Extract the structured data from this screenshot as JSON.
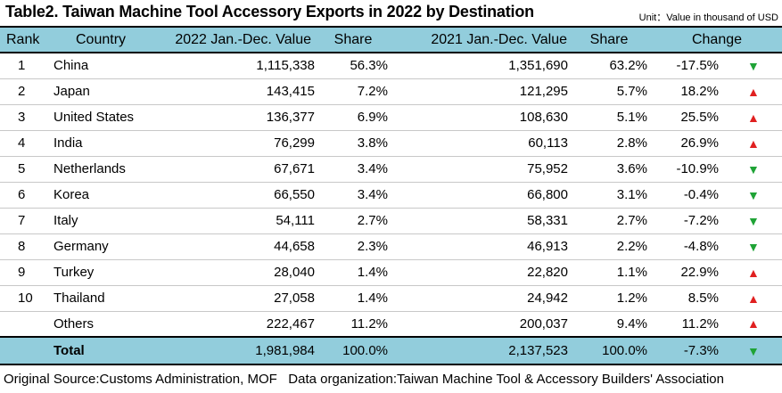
{
  "title": "Table2. Taiwan Machine Tool Accessory Exports in 2022 by Destination",
  "unit": "Unit：Value in thousand of USD",
  "headers": {
    "rank": "Rank",
    "country": "Country",
    "value_2022": "2022 Jan.-Dec. Value",
    "share_2022": "Share",
    "value_2021": "2021 Jan.-Dec. Value",
    "share_2021": "Share",
    "change": "Change"
  },
  "rows": [
    {
      "rank": "1",
      "country": "China",
      "value_2022": "1,115,338",
      "share_2022": "56.3%",
      "value_2021": "1,351,690",
      "share_2021": "63.2%",
      "change": "-17.5%",
      "direction": "down"
    },
    {
      "rank": "2",
      "country": "Japan",
      "value_2022": "143,415",
      "share_2022": "7.2%",
      "value_2021": "121,295",
      "share_2021": "5.7%",
      "change": "18.2%",
      "direction": "up"
    },
    {
      "rank": "3",
      "country": "United States",
      "value_2022": "136,377",
      "share_2022": "6.9%",
      "value_2021": "108,630",
      "share_2021": "5.1%",
      "change": "25.5%",
      "direction": "up"
    },
    {
      "rank": "4",
      "country": "India",
      "value_2022": "76,299",
      "share_2022": "3.8%",
      "value_2021": "60,113",
      "share_2021": "2.8%",
      "change": "26.9%",
      "direction": "up"
    },
    {
      "rank": "5",
      "country": "Netherlands",
      "value_2022": "67,671",
      "share_2022": "3.4%",
      "value_2021": "75,952",
      "share_2021": "3.6%",
      "change": "-10.9%",
      "direction": "down"
    },
    {
      "rank": "6",
      "country": "Korea",
      "value_2022": "66,550",
      "share_2022": "3.4%",
      "value_2021": "66,800",
      "share_2021": "3.1%",
      "change": "-0.4%",
      "direction": "down"
    },
    {
      "rank": "7",
      "country": "Italy",
      "value_2022": "54,111",
      "share_2022": "2.7%",
      "value_2021": "58,331",
      "share_2021": "2.7%",
      "change": "-7.2%",
      "direction": "down"
    },
    {
      "rank": "8",
      "country": "Germany",
      "value_2022": "44,658",
      "share_2022": "2.3%",
      "value_2021": "46,913",
      "share_2021": "2.2%",
      "change": "-4.8%",
      "direction": "down"
    },
    {
      "rank": "9",
      "country": "Turkey",
      "value_2022": "28,040",
      "share_2022": "1.4%",
      "value_2021": "22,820",
      "share_2021": "1.1%",
      "change": "22.9%",
      "direction": "up"
    },
    {
      "rank": "10",
      "country": "Thailand",
      "value_2022": "27,058",
      "share_2022": "1.4%",
      "value_2021": "24,942",
      "share_2021": "1.2%",
      "change": "8.5%",
      "direction": "up"
    }
  ],
  "others": {
    "rank": "",
    "country": "Others",
    "value_2022": "222,467",
    "share_2022": "11.2%",
    "value_2021": "200,037",
    "share_2021": "9.4%",
    "change": "11.2%",
    "direction": "up"
  },
  "total": {
    "rank": "",
    "country": "Total",
    "value_2022": "1,981,984",
    "share_2022": "100.0%",
    "value_2021": "2,137,523",
    "share_2021": "100.0%",
    "change": "-7.3%",
    "direction": "down"
  },
  "symbols": {
    "up": "▲",
    "down": "▼"
  },
  "colors": {
    "header_bg": "#92cddc",
    "up": "#e02020",
    "down": "#1fa336"
  },
  "footer": {
    "source": "Original Source:Customs Administration, MOF",
    "organization": "Data organization:Taiwan Machine Tool & Accessory Builders' Association"
  }
}
